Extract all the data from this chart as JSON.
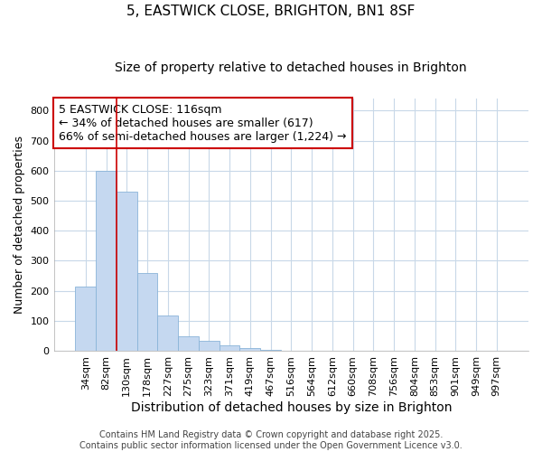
{
  "title": "5, EASTWICK CLOSE, BRIGHTON, BN1 8SF",
  "subtitle": "Size of property relative to detached houses in Brighton",
  "xlabel": "Distribution of detached houses by size in Brighton",
  "ylabel": "Number of detached properties",
  "categories": [
    "34sqm",
    "82sqm",
    "130sqm",
    "178sqm",
    "227sqm",
    "275sqm",
    "323sqm",
    "371sqm",
    "419sqm",
    "467sqm",
    "516sqm",
    "564sqm",
    "612sqm",
    "660sqm",
    "708sqm",
    "756sqm",
    "804sqm",
    "853sqm",
    "901sqm",
    "949sqm",
    "997sqm"
  ],
  "values": [
    215,
    600,
    530,
    258,
    117,
    49,
    32,
    18,
    10,
    4,
    0,
    1,
    0,
    0,
    0,
    0,
    0,
    0,
    0,
    0,
    0
  ],
  "bar_color": "#c5d8f0",
  "bar_edgecolor": "#8ab4d8",
  "vline_x": 1.5,
  "vline_color": "#cc0000",
  "vline_linewidth": 1.2,
  "annotation_text": "5 EASTWICK CLOSE: 116sqm\n← 34% of detached houses are smaller (617)\n66% of semi-detached houses are larger (1,224) →",
  "annotation_box_color": "white",
  "annotation_box_edgecolor": "#cc0000",
  "annotation_fontsize": 9,
  "ylim": [
    0,
    840
  ],
  "yticks": [
    0,
    100,
    200,
    300,
    400,
    500,
    600,
    700,
    800
  ],
  "grid_color": "#c8d8e8",
  "background_color": "#ffffff",
  "plot_bg_color": "#ffffff",
  "title_fontsize": 11,
  "subtitle_fontsize": 10,
  "xlabel_fontsize": 10,
  "ylabel_fontsize": 9,
  "tick_fontsize": 8,
  "footer_text": "Contains HM Land Registry data © Crown copyright and database right 2025.\nContains public sector information licensed under the Open Government Licence v3.0.",
  "footer_fontsize": 7
}
